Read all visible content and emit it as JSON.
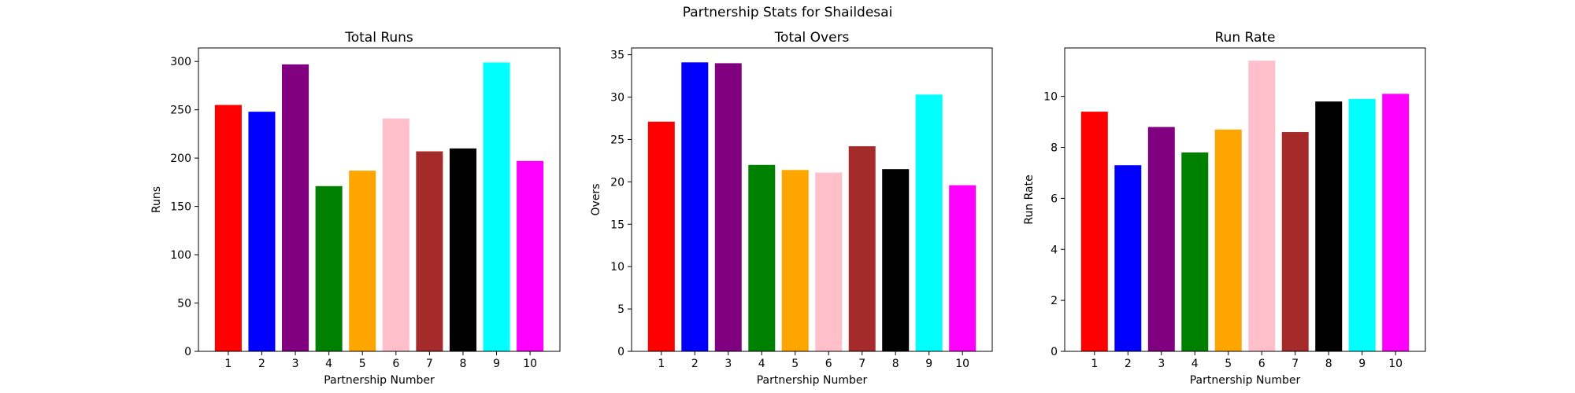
{
  "figure": {
    "suptitle": "Partnership Stats for Shaildesai"
  },
  "chart_data": [
    {
      "type": "bar",
      "title": "Total Runs",
      "xlabel": "Partnership Number",
      "ylabel": "Runs",
      "categories": [
        "1",
        "2",
        "3",
        "4",
        "5",
        "6",
        "7",
        "8",
        "9",
        "10"
      ],
      "values": [
        255,
        248,
        297,
        171,
        187,
        241,
        207,
        210,
        299,
        197
      ],
      "colors": [
        "#ff0000",
        "#0000ff",
        "#800080",
        "#008000",
        "#ffa500",
        "#ffc0cb",
        "#a52a2a",
        "#000000",
        "#00ffff",
        "#ff00ff"
      ],
      "ylim": [
        0,
        314
      ],
      "yticks": [
        0,
        50,
        100,
        150,
        200,
        250,
        300
      ],
      "grid": false
    },
    {
      "type": "bar",
      "title": "Total Overs",
      "xlabel": "Partnership Number",
      "ylabel": "Overs",
      "categories": [
        "1",
        "2",
        "3",
        "4",
        "5",
        "6",
        "7",
        "8",
        "9",
        "10"
      ],
      "values": [
        27.1,
        34.1,
        34.0,
        22.0,
        21.4,
        21.1,
        24.2,
        21.5,
        30.3,
        19.6
      ],
      "colors": [
        "#ff0000",
        "#0000ff",
        "#800080",
        "#008000",
        "#ffa500",
        "#ffc0cb",
        "#a52a2a",
        "#000000",
        "#00ffff",
        "#ff00ff"
      ],
      "ylim": [
        0,
        35.8
      ],
      "yticks": [
        0,
        5,
        10,
        15,
        20,
        25,
        30,
        35
      ],
      "grid": false
    },
    {
      "type": "bar",
      "title": "Run Rate",
      "xlabel": "Partnership Number",
      "ylabel": "Run Rate",
      "categories": [
        "1",
        "2",
        "3",
        "4",
        "5",
        "6",
        "7",
        "8",
        "9",
        "10"
      ],
      "values": [
        9.4,
        7.3,
        8.8,
        7.8,
        8.7,
        11.4,
        8.6,
        9.8,
        9.9,
        10.1
      ],
      "colors": [
        "#ff0000",
        "#0000ff",
        "#800080",
        "#008000",
        "#ffa500",
        "#ffc0cb",
        "#a52a2a",
        "#000000",
        "#00ffff",
        "#ff00ff"
      ],
      "ylim": [
        0,
        11.9
      ],
      "yticks": [
        0,
        2,
        4,
        6,
        8,
        10
      ],
      "grid": false
    }
  ]
}
